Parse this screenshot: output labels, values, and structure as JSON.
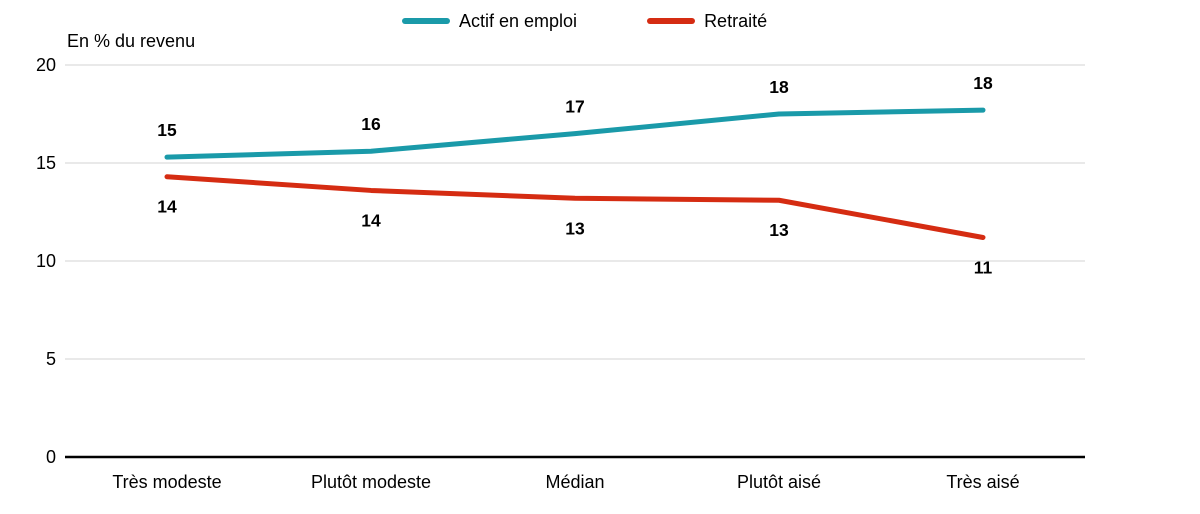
{
  "chart_data": {
    "type": "line",
    "title": "",
    "ylabel": "En % du revenu",
    "xlabel": "",
    "categories": [
      "Très modeste",
      "Plutôt modeste",
      "Médian",
      "Plutôt aisé",
      "Très aisé"
    ],
    "series": [
      {
        "name": "Actif en emploi",
        "color": "#1a9aa9",
        "values": [
          15,
          16,
          17,
          18,
          18
        ],
        "plotted_values": [
          15.3,
          15.6,
          16.5,
          17.5,
          17.7
        ],
        "label_position": "above"
      },
      {
        "name": "Retraité",
        "color": "#d52c12",
        "values": [
          14,
          14,
          13,
          13,
          11
        ],
        "plotted_values": [
          14.3,
          13.6,
          13.2,
          13.1,
          11.2
        ],
        "label_position": "below"
      }
    ],
    "yticks": [
      0,
      5,
      10,
      15,
      20
    ],
    "ylim": [
      0,
      20
    ],
    "grid": "horizontal",
    "legend_position": "top",
    "colors": {
      "gridline": "#e2e2e2",
      "axis_line": "#000000",
      "text": "#000000"
    }
  }
}
